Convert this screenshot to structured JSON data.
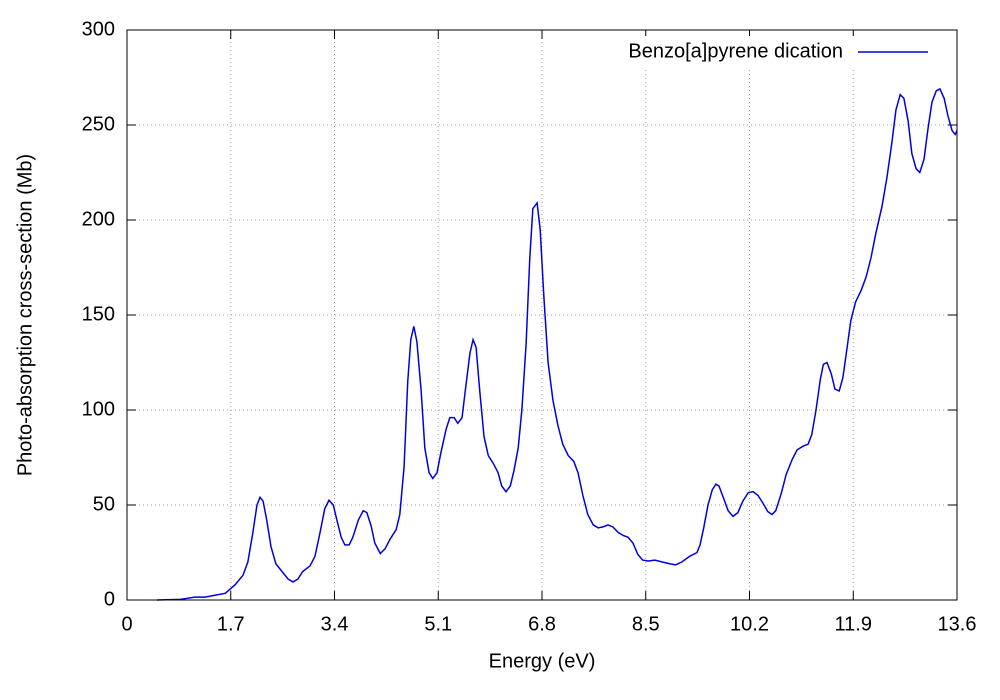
{
  "chart_data": {
    "type": "line",
    "xlabel": "Energy (eV)",
    "ylabel": "Photo-absorption cross-section (Mb)",
    "xlim": [
      0,
      13.6
    ],
    "xticks": [
      0,
      1.7,
      3.4,
      5.1,
      6.8,
      8.5,
      10.2,
      11.9,
      13.6
    ],
    "ylim": [
      0,
      300
    ],
    "yticks": [
      0,
      50,
      100,
      150,
      200,
      250,
      300
    ],
    "grid": true,
    "legend": "top-right",
    "x": [
      0.49,
      0.87,
      1.11,
      1.28,
      1.44,
      1.61,
      1.77,
      1.9,
      1.98,
      2.06,
      2.13,
      2.18,
      2.23,
      2.29,
      2.36,
      2.44,
      2.54,
      2.64,
      2.72,
      2.8,
      2.88,
      3.0,
      3.08,
      3.16,
      3.24,
      3.31,
      3.38,
      3.44,
      3.51,
      3.57,
      3.64,
      3.7,
      3.79,
      3.87,
      3.93,
      4.0,
      4.06,
      4.15,
      4.23,
      4.31,
      4.41,
      4.47,
      4.54,
      4.6,
      4.65,
      4.7,
      4.75,
      4.82,
      4.88,
      4.95,
      5.01,
      5.08,
      5.14,
      5.23,
      5.29,
      5.36,
      5.42,
      5.49,
      5.55,
      5.62,
      5.67,
      5.72,
      5.78,
      5.85,
      5.92,
      6.0,
      6.08,
      6.14,
      6.21,
      6.28,
      6.34,
      6.41,
      6.47,
      6.54,
      6.6,
      6.65,
      6.72,
      6.77,
      6.83,
      6.9,
      6.98,
      7.06,
      7.14,
      7.23,
      7.32,
      7.39,
      7.47,
      7.55,
      7.64,
      7.72,
      7.8,
      7.88,
      7.96,
      8.05,
      8.13,
      8.21,
      8.29,
      8.37,
      8.45,
      8.54,
      8.65,
      8.77,
      8.9,
      8.99,
      9.09,
      9.22,
      9.34,
      9.39,
      9.45,
      9.52,
      9.59,
      9.65,
      9.7,
      9.77,
      9.85,
      9.93,
      10.01,
      10.09,
      10.18,
      10.26,
      10.34,
      10.42,
      10.5,
      10.57,
      10.63,
      10.72,
      10.8,
      10.9,
      10.98,
      11.08,
      11.16,
      11.22,
      11.29,
      11.36,
      11.41,
      11.47,
      11.54,
      11.6,
      11.67,
      11.73,
      11.8,
      11.86,
      11.94,
      12.03,
      12.11,
      12.19,
      12.27,
      12.37,
      12.45,
      12.53,
      12.6,
      12.67,
      12.73,
      12.8,
      12.86,
      12.93,
      12.99,
      13.06,
      13.12,
      13.19,
      13.26,
      13.32,
      13.39,
      13.45,
      13.52,
      13.57,
      13.6
    ],
    "series": [
      {
        "name": "Benzo[a]pyrene dication",
        "color": "#0000e0",
        "values": [
          0,
          0.3,
          1.5,
          1.5,
          2.5,
          3.5,
          8,
          13,
          20,
          35,
          50,
          54,
          52,
          42,
          28,
          19,
          15,
          11,
          9.5,
          11,
          15,
          18,
          23,
          35,
          48,
          52.5,
          50,
          42,
          33,
          29,
          29,
          33,
          42,
          47,
          46,
          39,
          30,
          24.5,
          27,
          32,
          37,
          45,
          70,
          115,
          137,
          144,
          136,
          110,
          80,
          67,
          64,
          67,
          77,
          90,
          96,
          96,
          93,
          96,
          112,
          130,
          137,
          133,
          110,
          86,
          76,
          72,
          67,
          60,
          57,
          60,
          68,
          80,
          100,
          135,
          180,
          206,
          209,
          195,
          160,
          125,
          105,
          92,
          82,
          76,
          73,
          67,
          55,
          45,
          39.5,
          38,
          38.5,
          39.5,
          38.5,
          35.5,
          34,
          33,
          30,
          24,
          21,
          20.5,
          21,
          20,
          19,
          18.5,
          20,
          23,
          25,
          29,
          38,
          50,
          58,
          61,
          60,
          54,
          47,
          44,
          46,
          52,
          56.5,
          57,
          55,
          51,
          46.5,
          45,
          47,
          56,
          66,
          74,
          79,
          81,
          82,
          87,
          100,
          116,
          124,
          125,
          119,
          111,
          110,
          117,
          133,
          147,
          157,
          163,
          170,
          180,
          193,
          207,
          222,
          240,
          258,
          266,
          264,
          252,
          235,
          227,
          225,
          232,
          247,
          262,
          268,
          269,
          264,
          255,
          247,
          245,
          247
        ]
      }
    ]
  }
}
